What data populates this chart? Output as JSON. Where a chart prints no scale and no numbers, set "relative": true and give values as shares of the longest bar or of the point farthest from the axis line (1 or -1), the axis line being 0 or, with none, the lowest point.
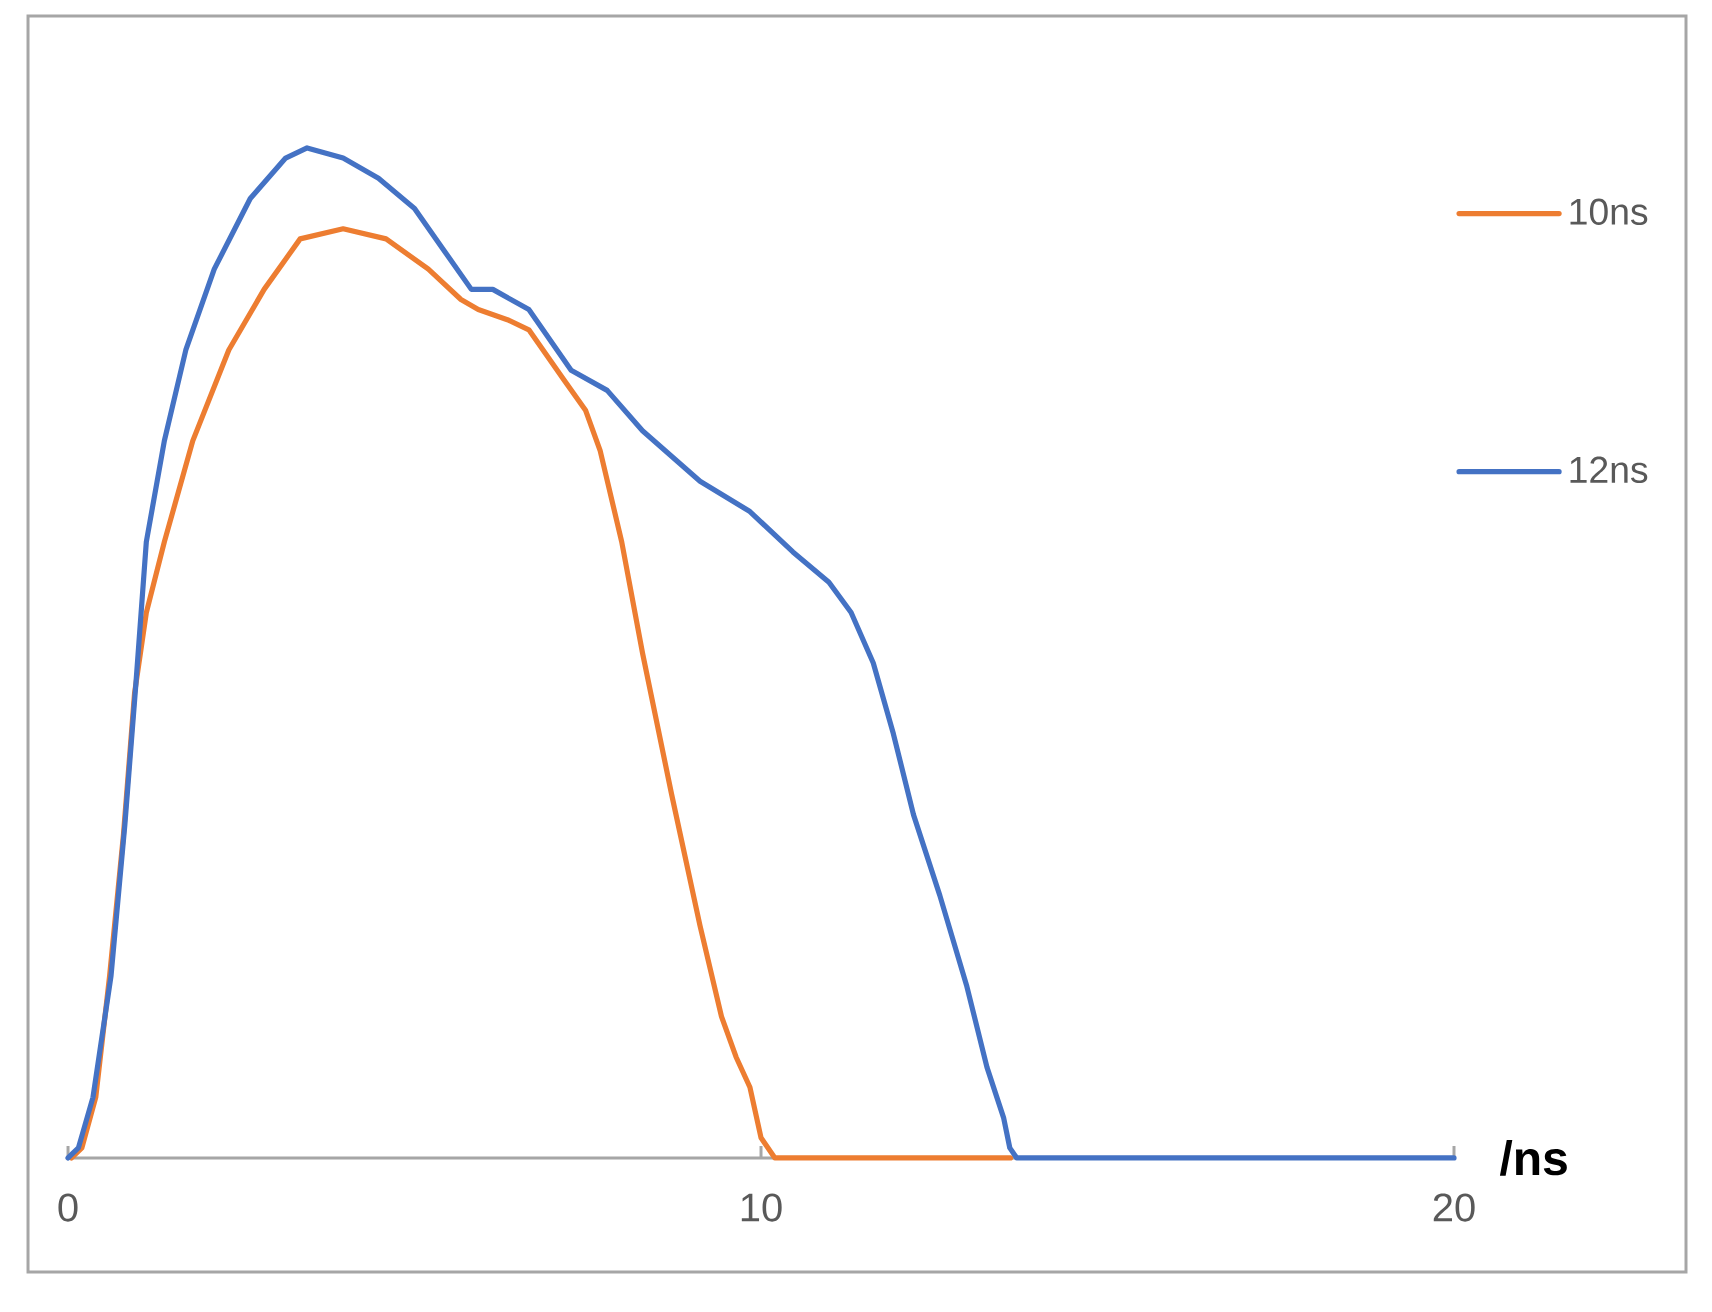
{
  "chart_data": {
    "type": "line",
    "xlabel": "/ns",
    "relative": true,
    "xlim": [
      0,
      20
    ],
    "xticks": [
      0,
      10,
      20
    ],
    "legend": "right",
    "series": [
      {
        "name": "10ns",
        "color": "#ED7D31",
        "x": [
          0.05,
          0.2,
          0.4,
          0.6,
          0.8,
          0.96,
          1.13,
          1.39,
          1.8,
          2.32,
          2.83,
          3.35,
          3.97,
          4.59,
          5.2,
          5.67,
          5.92,
          6.34,
          6.65,
          7.16,
          7.47,
          7.68,
          7.99,
          8.29,
          8.71,
          9.12,
          9.43,
          9.64,
          9.84,
          10.0,
          10.2,
          13.6
        ],
        "values": [
          0,
          0.01,
          0.06,
          0.18,
          0.32,
          0.46,
          0.54,
          0.61,
          0.71,
          0.8,
          0.86,
          0.91,
          0.92,
          0.91,
          0.88,
          0.85,
          0.84,
          0.83,
          0.82,
          0.77,
          0.74,
          0.7,
          0.61,
          0.5,
          0.36,
          0.23,
          0.14,
          0.1,
          0.07,
          0.02,
          0,
          0
        ]
      },
      {
        "name": "12ns",
        "color": "#4472C4",
        "x": [
          0,
          0.15,
          0.36,
          0.62,
          0.82,
          0.98,
          1.13,
          1.39,
          1.7,
          2.11,
          2.63,
          3.14,
          3.45,
          3.97,
          4.48,
          5.0,
          5.41,
          5.82,
          6.13,
          6.39,
          6.65,
          7.26,
          7.78,
          8.29,
          9.12,
          9.84,
          10.46,
          10.98,
          11.3,
          11.62,
          11.91,
          12.2,
          12.58,
          12.97,
          13.26,
          13.5,
          13.59,
          13.69,
          20
        ],
        "values": [
          0,
          0.01,
          0.06,
          0.18,
          0.33,
          0.47,
          0.61,
          0.71,
          0.8,
          0.88,
          0.95,
          0.99,
          1.0,
          0.99,
          0.97,
          0.94,
          0.9,
          0.86,
          0.86,
          0.85,
          0.84,
          0.78,
          0.76,
          0.72,
          0.67,
          0.64,
          0.6,
          0.57,
          0.54,
          0.49,
          0.42,
          0.34,
          0.26,
          0.17,
          0.09,
          0.04,
          0.01,
          0,
          0
        ]
      }
    ]
  }
}
